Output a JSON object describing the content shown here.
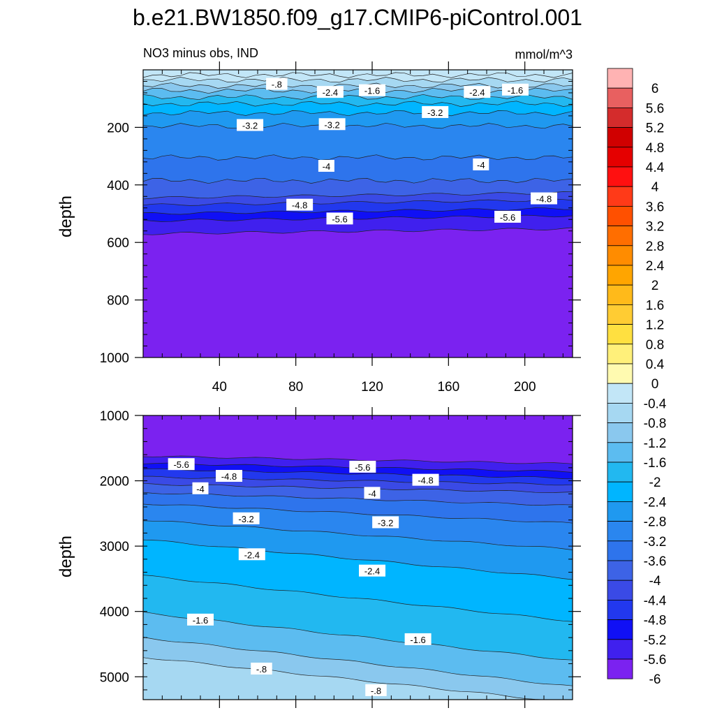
{
  "chart_data": {
    "type": "heatmap",
    "title": "b.e21.BW1850.f09_g17.CMIP6-piControl.001",
    "subtitle_left": "NO3 minus obs, IND",
    "subtitle_right": "mmol/m^3",
    "panels": [
      {
        "id": "upper",
        "ylabel": "depth",
        "xlim": [
          0,
          225
        ],
        "ylim": [
          0,
          1000
        ],
        "y_inverted": true,
        "x_ticks": [
          "40",
          "80",
          "120",
          "160",
          "200"
        ],
        "y_ticks": [
          "200",
          "400",
          "600",
          "800",
          "1000"
        ],
        "bands": [
          {
            "top": 0,
            "level": 0
          },
          {
            "top": 18,
            "level": -0.4
          },
          {
            "top": 35,
            "level": -0.8
          },
          {
            "top": 55,
            "level": -1.2
          },
          {
            "top": 72,
            "level": -1.6
          },
          {
            "top": 95,
            "level": -2.0
          },
          {
            "top": 118,
            "level": -2.4
          },
          {
            "top": 150,
            "level": -2.8
          },
          {
            "top": 195,
            "level": -3.2
          },
          {
            "top": 305,
            "level": -3.6
          },
          {
            "top": 385,
            "level": -4.0
          },
          {
            "top": 445,
            "level": -4.4
          },
          {
            "top": 470,
            "level": -4.8
          },
          {
            "top": 500,
            "level": -5.2
          },
          {
            "top": 525,
            "level": -5.6
          },
          {
            "top": 570,
            "level": -6.0
          }
        ],
        "contour_labels": [
          {
            "text": "-.8",
            "x": 70,
            "y": 50
          },
          {
            "text": "-2.4",
            "x": 98,
            "y": 78
          },
          {
            "text": "-1.6",
            "x": 120,
            "y": 72
          },
          {
            "text": "-2.4",
            "x": 175,
            "y": 78
          },
          {
            "text": "-1.6",
            "x": 195,
            "y": 70
          },
          {
            "text": "-3.2",
            "x": 56,
            "y": 193
          },
          {
            "text": "-3.2",
            "x": 99,
            "y": 190
          },
          {
            "text": "-3.2",
            "x": 153,
            "y": 148
          },
          {
            "text": "-4",
            "x": 96,
            "y": 335
          },
          {
            "text": "-4",
            "x": 177,
            "y": 330
          },
          {
            "text": "-4.8",
            "x": 82,
            "y": 470
          },
          {
            "text": "-4.8",
            "x": 210,
            "y": 448
          },
          {
            "text": "-5.6",
            "x": 103,
            "y": 518
          },
          {
            "text": "-5.6",
            "x": 191,
            "y": 512
          }
        ]
      },
      {
        "id": "lower",
        "ylabel": "depth",
        "xlim": [
          0,
          225
        ],
        "ylim": [
          1000,
          5350
        ],
        "y_inverted": true,
        "x_ticks": [],
        "y_ticks": [
          "1000",
          "2000",
          "3000",
          "4000",
          "5000"
        ],
        "bands": [
          {
            "topL": 1000,
            "topR": 1000,
            "level": -6.0
          },
          {
            "topL": 1620,
            "topR": 1740,
            "level": -5.6
          },
          {
            "topL": 1730,
            "topR": 1860,
            "level": -5.2
          },
          {
            "topL": 1820,
            "topR": 1960,
            "level": -4.8
          },
          {
            "topL": 1940,
            "topR": 2060,
            "level": -4.4
          },
          {
            "topL": 2050,
            "topR": 2180,
            "level": -4.0
          },
          {
            "topL": 2180,
            "topR": 2380,
            "level": -3.6
          },
          {
            "topL": 2350,
            "topR": 2650,
            "level": -3.2
          },
          {
            "topL": 2600,
            "topR": 3050,
            "level": -2.8
          },
          {
            "topL": 2900,
            "topR": 3500,
            "level": -2.4
          },
          {
            "topL": 3450,
            "topR": 4150,
            "level": -2.0
          },
          {
            "topL": 4020,
            "topR": 4750,
            "level": -1.6
          },
          {
            "topL": 4400,
            "topR": 5150,
            "level": -1.2
          },
          {
            "topL": 4700,
            "topR": 5400,
            "level": -0.8
          }
        ],
        "contour_labels": [
          {
            "text": "-5.6",
            "x": 20,
            "y": 1750
          },
          {
            "text": "-5.6",
            "x": 115,
            "y": 1790
          },
          {
            "text": "-4.8",
            "x": 45,
            "y": 1930
          },
          {
            "text": "-4.8",
            "x": 148,
            "y": 1990
          },
          {
            "text": "-4",
            "x": 30,
            "y": 2120
          },
          {
            "text": "-4",
            "x": 120,
            "y": 2190
          },
          {
            "text": "-3.2",
            "x": 54,
            "y": 2580
          },
          {
            "text": "-3.2",
            "x": 127,
            "y": 2640
          },
          {
            "text": "-2.4",
            "x": 57,
            "y": 3130
          },
          {
            "text": "-2.4",
            "x": 120,
            "y": 3380
          },
          {
            "text": "-1.6",
            "x": 30,
            "y": 4130
          },
          {
            "text": "-1.6",
            "x": 144,
            "y": 4430
          },
          {
            "text": "-.8",
            "x": 62,
            "y": 4880
          },
          {
            "text": "-.8",
            "x": 122,
            "y": 5210
          }
        ]
      }
    ],
    "colorbar": {
      "labels": [
        "6",
        "5.6",
        "5.2",
        "4.8",
        "4.4",
        "4",
        "3.6",
        "3.2",
        "2.8",
        "2.4",
        "2",
        "1.6",
        "1.2",
        "0.8",
        "0.4",
        "0",
        "-0.4",
        "-0.8",
        "-1.2",
        "-1.6",
        "-2",
        "-2.4",
        "-2.8",
        "-3.2",
        "-3.6",
        "-4",
        "-4.4",
        "-4.8",
        "-5.2",
        "-5.6",
        "-6"
      ],
      "levels": [
        6.0,
        5.6,
        5.2,
        4.8,
        4.4,
        4.0,
        3.6,
        3.2,
        2.8,
        2.4,
        2.0,
        1.6,
        1.2,
        0.8,
        0.4,
        0.0,
        -0.4,
        -0.8,
        -1.2,
        -1.6,
        -2.0,
        -2.4,
        -2.8,
        -3.2,
        -3.6,
        -4.0,
        -4.4,
        -4.8,
        -5.2,
        -5.6,
        -6.0
      ],
      "colors": [
        "#ffb3b3",
        "#e86060",
        "#d42c2c",
        "#d00000",
        "#e50000",
        "#ff1010",
        "#ff3a18",
        "#ff5000",
        "#ff6e00",
        "#ff8c00",
        "#ffa500",
        "#ffba1a",
        "#ffcc33",
        "#ffe040",
        "#fff07a",
        "#fffab0",
        "#c2e6f7",
        "#a6d8f2",
        "#8ac8ee",
        "#5cbcf0",
        "#22b8f0",
        "#00b5ff",
        "#1f99f0",
        "#2a86ef",
        "#2e74ec",
        "#3d63e6",
        "#3a4ae6",
        "#2238ee",
        "#1010f5",
        "#4020ee",
        "#7b22f0"
      ],
      "level_colors": {
        "0": "#c2e6f7",
        "-0.4": "#c2e6f7",
        "-0.8": "#a6d8f2",
        "-1.2": "#8ac8ee",
        "-1.6": "#5cbcf0",
        "-2.0": "#22b8f0",
        "-2.4": "#00b5ff",
        "-2.8": "#1f99f0",
        "-3.2": "#2a86ef",
        "-3.6": "#2e74ec",
        "-4.0": "#3d63e6",
        "-4.4": "#3a4ae6",
        "-4.8": "#2238ee",
        "-5.2": "#1010f5",
        "-5.6": "#4020ee",
        "-6.0": "#7b22f0"
      }
    }
  }
}
